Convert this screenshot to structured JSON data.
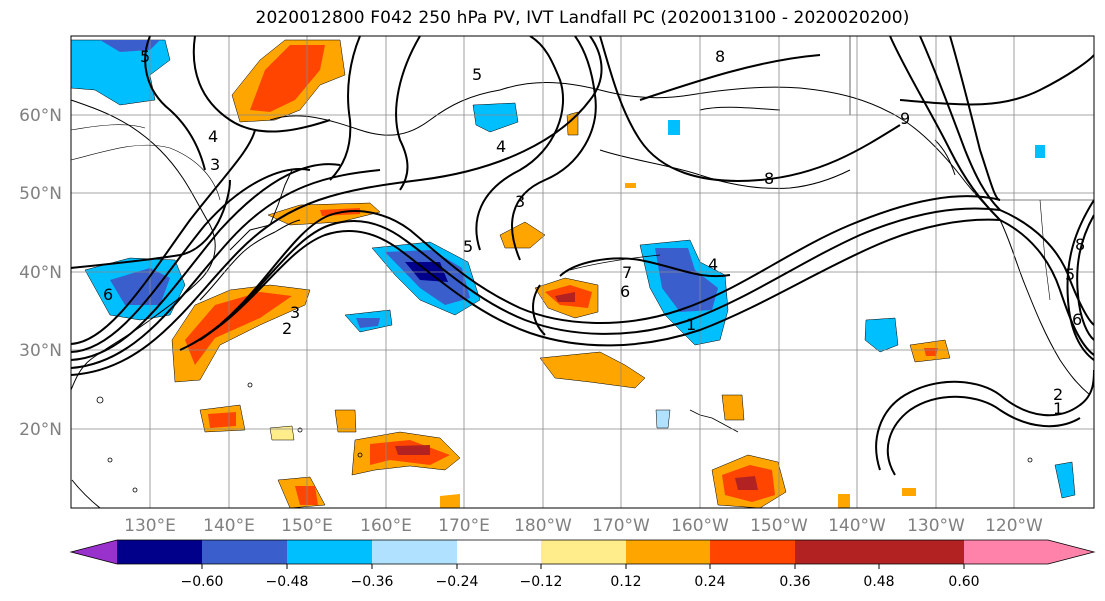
{
  "title": "2020012800 F042 250 hPa PV, IVT Landfall PC (2020013100 - 2020020200)",
  "latitude_labels": [
    "60°N",
    "50°N",
    "40°N",
    "30°N",
    "20°N"
  ],
  "longitude_labels": [
    "130°E",
    "140°E",
    "150°E",
    "160°E",
    "170°E",
    "180°W",
    "170°W",
    "160°W",
    "150°W",
    "140°W",
    "130°W",
    "120°W"
  ],
  "colorbar": {
    "tick_labels": [
      "−0.60",
      "−0.48",
      "−0.36",
      "−0.24",
      "−0.12",
      "0.12",
      "0.24",
      "0.36",
      "0.48",
      "0.60"
    ],
    "colors": [
      "#9932cc",
      "#00008b",
      "#3a5fcd",
      "#00bfff",
      "#b0e2ff",
      "#ffffff",
      "#ffec8b",
      "#ffa500",
      "#ff4500",
      "#b22222",
      "#ff82ab"
    ],
    "extend": "both"
  },
  "pv_contour_labels": [
    "5",
    "4",
    "3",
    "5",
    "3",
    "7",
    "6",
    "4",
    "1",
    "2",
    "3",
    "4",
    "6",
    "8",
    "8",
    "9",
    "2",
    "1",
    "5",
    "6",
    "5",
    "8"
  ]
}
